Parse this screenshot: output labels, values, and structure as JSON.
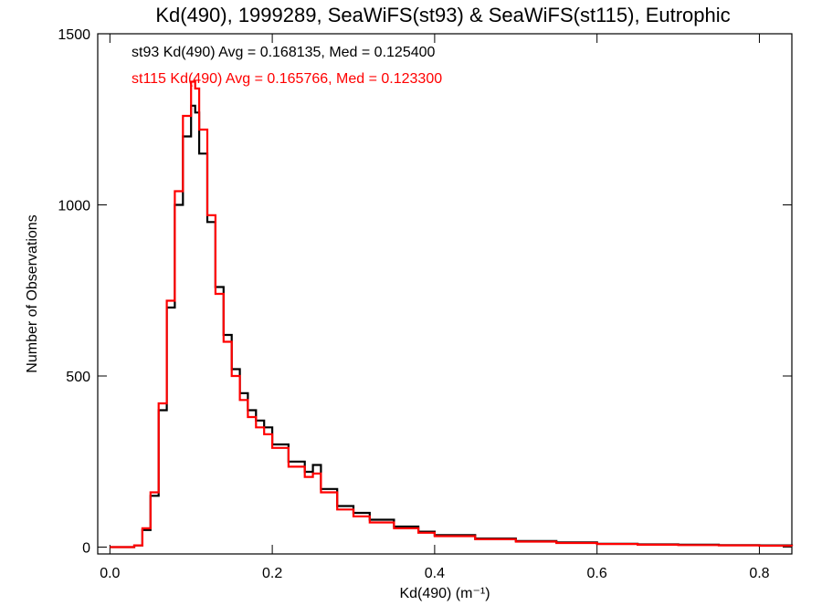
{
  "chart_data": {
    "type": "line",
    "title": "Kd(490), 1999289, SeaWiFS(st93) & SeaWiFS(st115), Eutrophic",
    "xlabel": "Kd(490) (m⁻¹)",
    "ylabel": "Number of Observations",
    "xlim": [
      -0.015,
      0.84
    ],
    "ylim": [
      -20,
      1500
    ],
    "xticks": [
      0.0,
      0.2,
      0.4,
      0.6,
      0.8
    ],
    "xtick_labels": [
      "0.0",
      "0.2",
      "0.4",
      "0.6",
      "0.8"
    ],
    "yticks": [
      0,
      500,
      1000,
      1500
    ],
    "ytick_labels": [
      "0",
      "500",
      "1000",
      "1500"
    ],
    "grid": false,
    "legend_placement": "top-left",
    "series": [
      {
        "name": "st93",
        "color": "#000000",
        "annotation": "st93 Kd(490) Avg = 0.168135, Med = 0.125400",
        "x": [
          0.0,
          0.02,
          0.03,
          0.04,
          0.05,
          0.06,
          0.07,
          0.08,
          0.09,
          0.1,
          0.105,
          0.11,
          0.12,
          0.13,
          0.14,
          0.15,
          0.16,
          0.17,
          0.18,
          0.19,
          0.2,
          0.22,
          0.24,
          0.25,
          0.26,
          0.28,
          0.3,
          0.32,
          0.35,
          0.38,
          0.4,
          0.45,
          0.5,
          0.55,
          0.6,
          0.65,
          0.7,
          0.75,
          0.8,
          0.84
        ],
        "values": [
          0,
          0,
          5,
          50,
          150,
          400,
          700,
          1000,
          1200,
          1290,
          1270,
          1150,
          950,
          760,
          620,
          520,
          450,
          400,
          370,
          350,
          300,
          250,
          220,
          240,
          170,
          120,
          100,
          80,
          60,
          45,
          35,
          25,
          18,
          14,
          10,
          8,
          7,
          6,
          5,
          4
        ]
      },
      {
        "name": "st115",
        "color": "#ff0000",
        "annotation": "st115 Kd(490) Avg = 0.165766, Med = 0.123300",
        "x": [
          0.0,
          0.02,
          0.03,
          0.04,
          0.05,
          0.06,
          0.07,
          0.08,
          0.09,
          0.1,
          0.105,
          0.11,
          0.12,
          0.13,
          0.14,
          0.15,
          0.16,
          0.17,
          0.18,
          0.19,
          0.2,
          0.22,
          0.24,
          0.25,
          0.26,
          0.28,
          0.3,
          0.32,
          0.35,
          0.38,
          0.4,
          0.45,
          0.5,
          0.55,
          0.6,
          0.65,
          0.7,
          0.75,
          0.8,
          0.84
        ],
        "values": [
          0,
          0,
          5,
          55,
          160,
          420,
          720,
          1040,
          1260,
          1360,
          1340,
          1220,
          970,
          740,
          600,
          500,
          430,
          380,
          350,
          330,
          290,
          235,
          205,
          215,
          160,
          110,
          90,
          72,
          55,
          42,
          32,
          23,
          16,
          12,
          9,
          7,
          6,
          5,
          4,
          3
        ]
      }
    ]
  }
}
